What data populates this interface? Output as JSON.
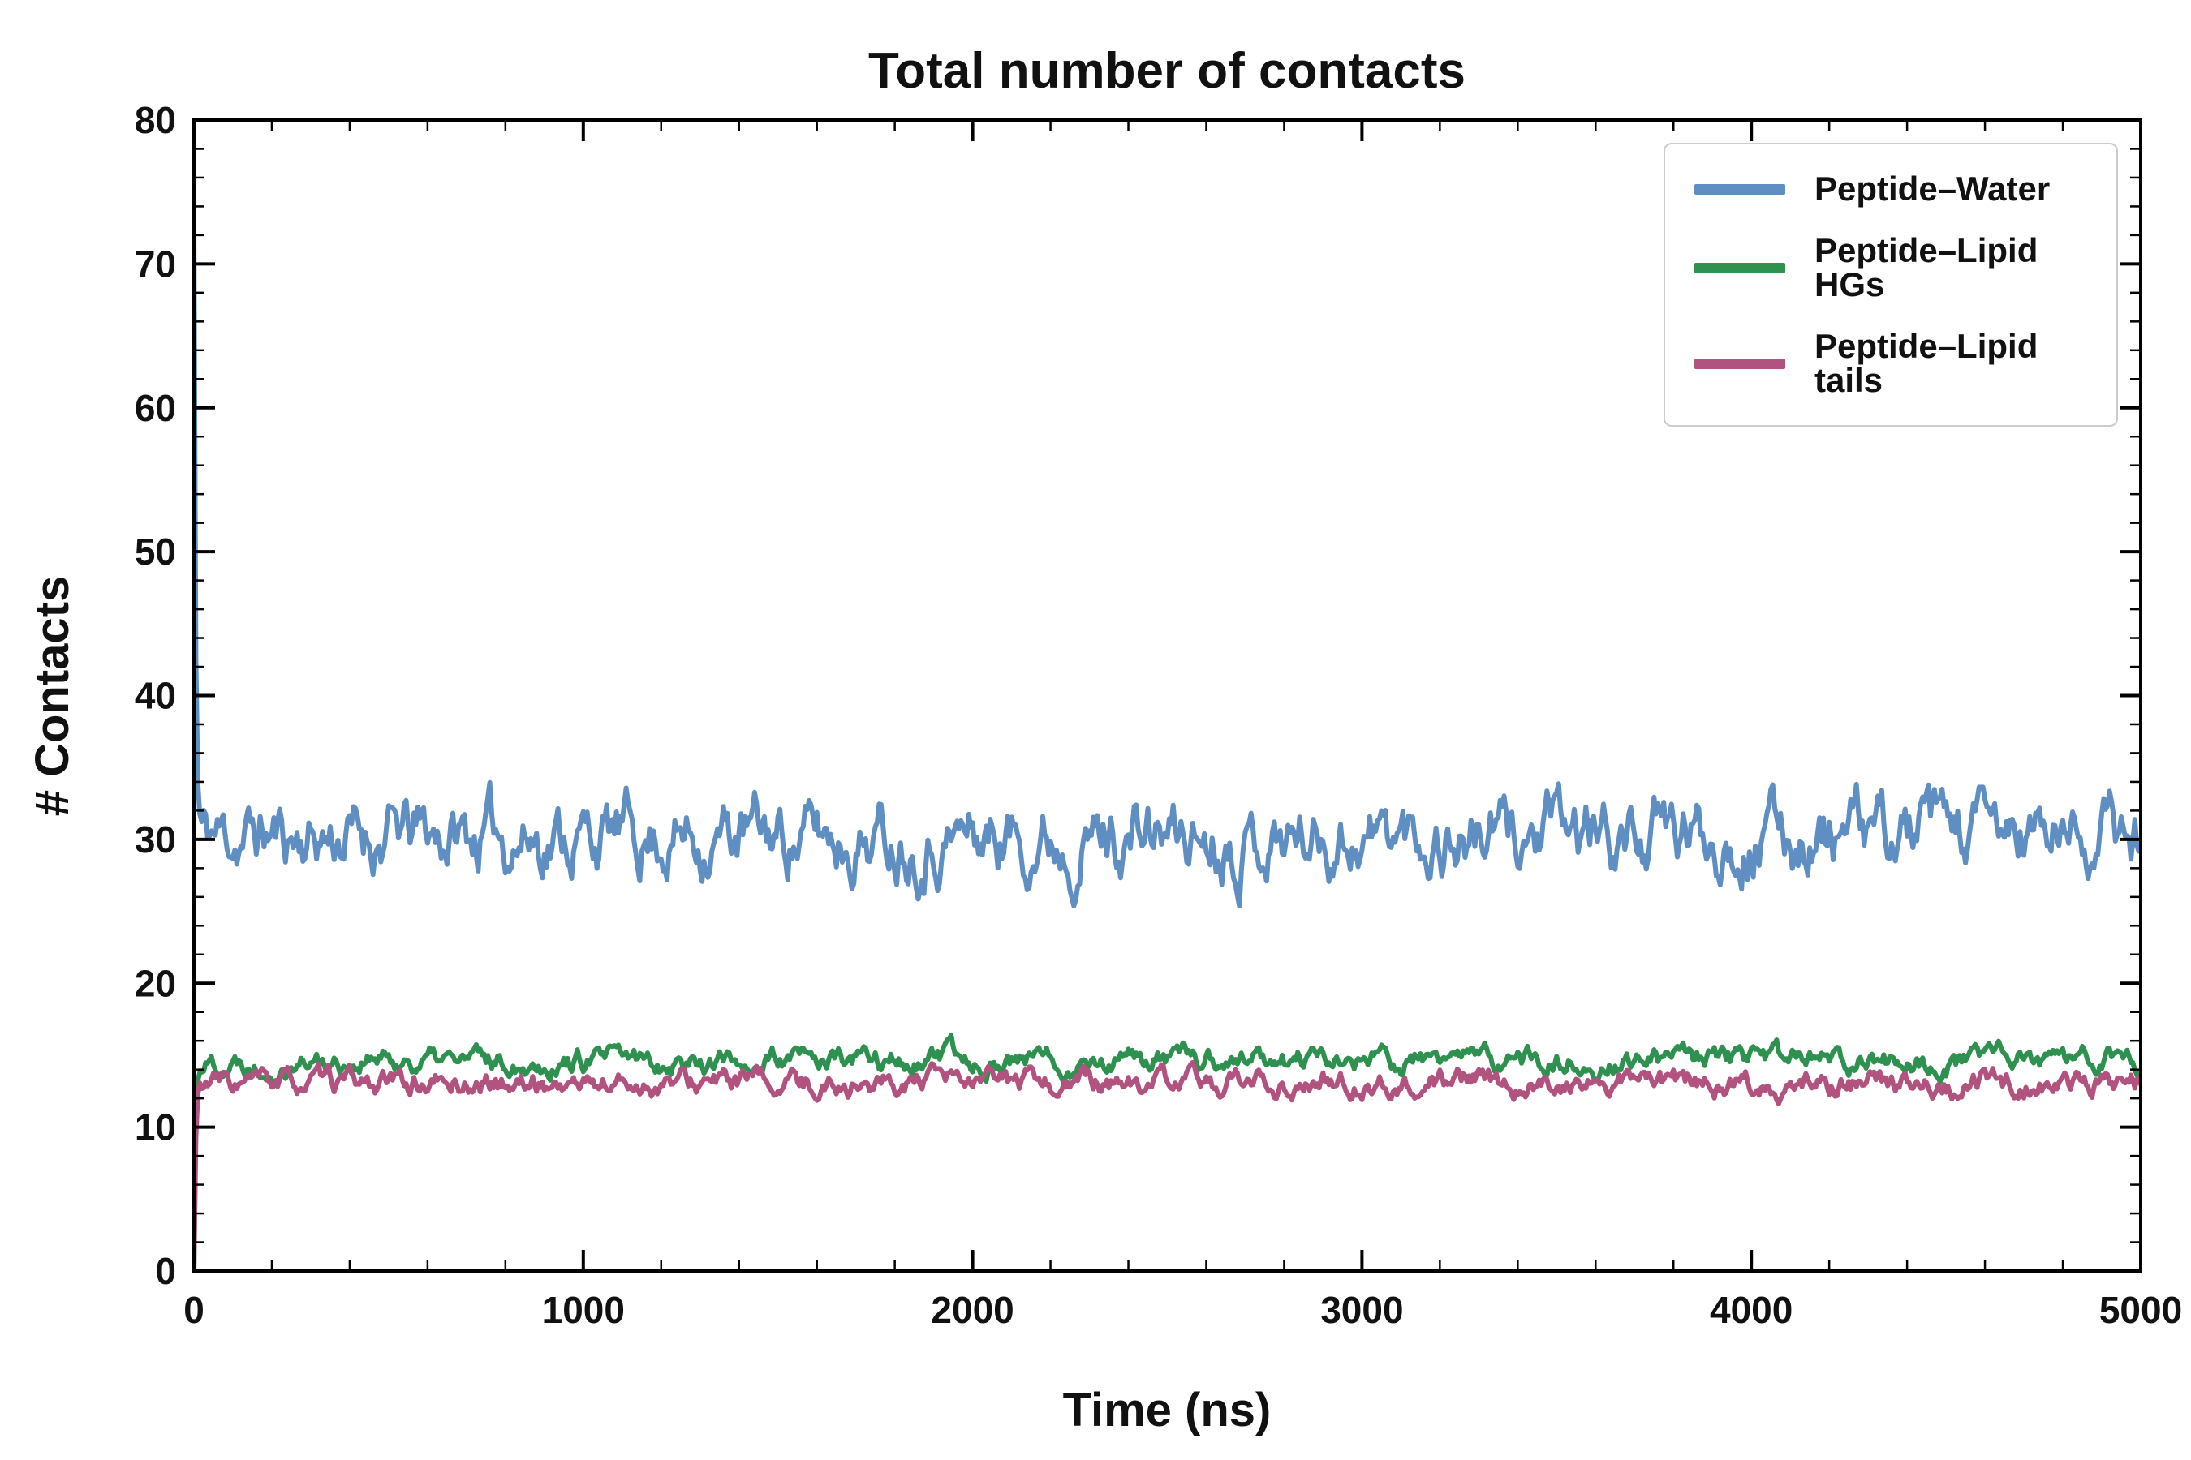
{
  "figure": {
    "title": "Total number of contacts",
    "xlabel": "Time (ns)",
    "ylabel": "# Contacts"
  },
  "chart_data": {
    "type": "line",
    "title": "Total number of contacts",
    "xlabel": "Time (ns)",
    "ylabel": "# Contacts",
    "xlim": [
      0,
      5000
    ],
    "ylim": [
      0,
      80
    ],
    "xticks": [
      0,
      1000,
      2000,
      3000,
      4000,
      5000
    ],
    "x_minor_interval": 200,
    "yticks": [
      0,
      10,
      20,
      30,
      40,
      50,
      60,
      70,
      80
    ],
    "y_minor_interval": 2,
    "grid": false,
    "legend_position": "upper right",
    "sample_interval_ns": 5,
    "line_width": 6,
    "series": [
      {
        "name": "Peptide–Water",
        "color": "#5f8fc2",
        "start_value": 73,
        "settled_mean": 30.3,
        "settle_tau_ns": 4,
        "noise_amp": 3.2,
        "approx_min": 26.5,
        "approx_max": 35.5,
        "seed": 11
      },
      {
        "name": "Peptide–Lipid HGs",
        "color": "#2f9150",
        "start_value": 0,
        "settled_mean": 14.6,
        "settle_tau_ns": 4,
        "noise_amp": 1.1,
        "approx_min": 13.2,
        "approx_max": 16.3,
        "seed": 22
      },
      {
        "name": "Peptide–Lipid tails",
        "color": "#b2527f",
        "start_value": 0,
        "settled_mean": 13.0,
        "settle_tau_ns": 4,
        "noise_amp": 1.1,
        "approx_min": 11.6,
        "approx_max": 14.3,
        "seed": 33
      }
    ]
  }
}
